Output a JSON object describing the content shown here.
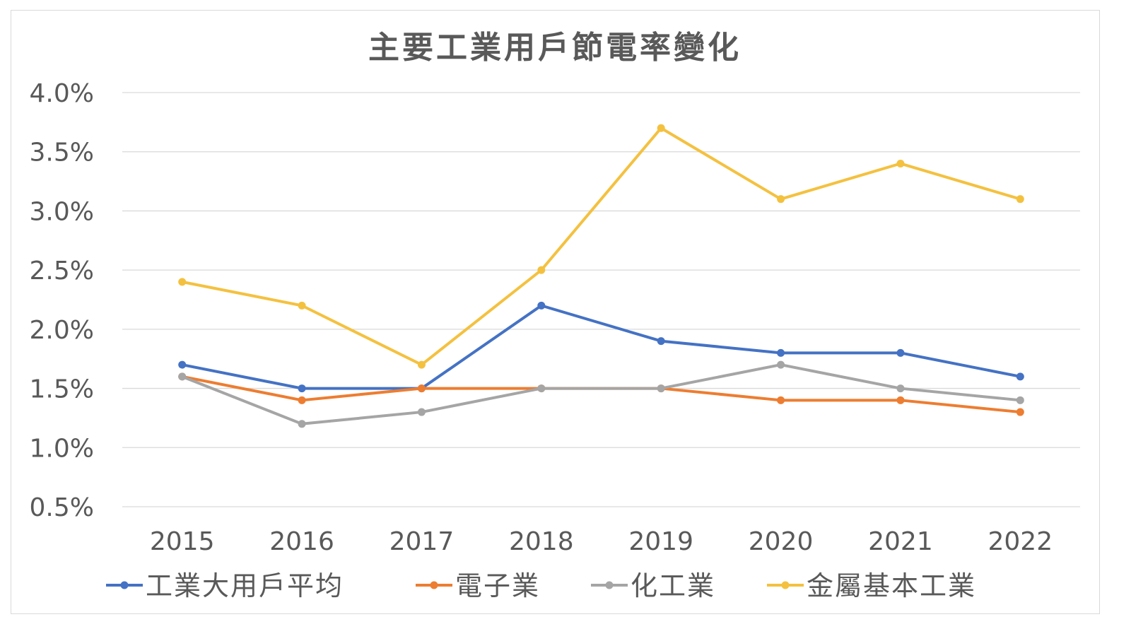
{
  "chart_data": {
    "type": "line",
    "title": "主要工業用戶節電率變化",
    "xlabel": "",
    "ylabel": "",
    "categories": [
      "2015",
      "2016",
      "2017",
      "2018",
      "2019",
      "2020",
      "2021",
      "2022"
    ],
    "y_ticks": [
      "0.5%",
      "1.0%",
      "1.5%",
      "2.0%",
      "2.5%",
      "3.0%",
      "3.5%",
      "4.0%"
    ],
    "ylim": [
      0.5,
      4.0
    ],
    "y_unit": "%",
    "grid": true,
    "legend_position": "bottom",
    "series": [
      {
        "name": "工業大用戶平均",
        "color": "#4472C4",
        "values": [
          1.7,
          1.5,
          1.5,
          2.2,
          1.9,
          1.8,
          1.8,
          1.6
        ]
      },
      {
        "name": "電子業",
        "color": "#ED7D31",
        "values": [
          1.6,
          1.4,
          1.5,
          1.5,
          1.5,
          1.4,
          1.4,
          1.3
        ]
      },
      {
        "name": "化工業",
        "color": "#A5A5A5",
        "values": [
          1.6,
          1.2,
          1.3,
          1.5,
          1.5,
          1.7,
          1.5,
          1.4
        ]
      },
      {
        "name": "金屬基本工業",
        "color": "#F4C13F",
        "values": [
          2.4,
          2.2,
          1.7,
          2.5,
          3.7,
          3.1,
          3.4,
          3.1
        ]
      }
    ]
  }
}
